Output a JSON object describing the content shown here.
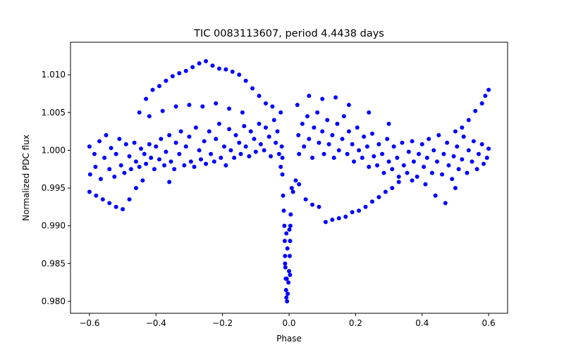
{
  "chart_data": {
    "type": "scatter",
    "title": "TIC 0083113607, period 4.4438 days",
    "xlabel": "Phase",
    "ylabel": "Normalized PDC flux",
    "xlim": [
      -0.657,
      0.657
    ],
    "ylim": [
      0.97842,
      1.0143
    ],
    "x_ticks": [
      -0.6,
      -0.4,
      -0.2,
      0.0,
      0.2,
      0.4,
      0.6
    ],
    "x_tick_labels": [
      "−0.6",
      "−0.4",
      "−0.2",
      "0.0",
      "0.2",
      "0.4",
      "0.6"
    ],
    "y_ticks": [
      0.98,
      0.985,
      0.99,
      0.995,
      1.0,
      1.005,
      1.01
    ],
    "y_tick_labels": [
      "0.980",
      "0.985",
      "0.990",
      "0.995",
      "1.000",
      "1.005",
      "1.010"
    ],
    "grid": false,
    "series": [
      {
        "name": "flux",
        "color": "#0000ff",
        "points": [
          [
            -0.6,
            1.0005
          ],
          [
            -0.598,
            0.9968
          ],
          [
            -0.585,
            0.9995
          ],
          [
            -0.582,
            0.9978
          ],
          [
            -0.57,
            1.0012
          ],
          [
            -0.566,
            0.9962
          ],
          [
            -0.555,
            0.999
          ],
          [
            -0.55,
            1.002
          ],
          [
            -0.54,
            0.9975
          ],
          [
            -0.535,
            1.0003
          ],
          [
            -0.525,
            0.9965
          ],
          [
            -0.52,
            0.9995
          ],
          [
            -0.51,
            1.0015
          ],
          [
            -0.505,
            0.998
          ],
          [
            -0.495,
            0.997
          ],
          [
            -0.49,
            1.0008
          ],
          [
            -0.48,
            0.9992
          ],
          [
            -0.475,
            0.9975
          ],
          [
            -0.465,
            1.001
          ],
          [
            -0.46,
            0.9985
          ],
          [
            -0.45,
            0.9978
          ],
          [
            -0.445,
            1.0002
          ],
          [
            -0.435,
            0.9995
          ],
          [
            -0.43,
            0.9982
          ],
          [
            -0.42,
            1.0008
          ],
          [
            -0.415,
            0.999
          ],
          [
            -0.405,
            0.9975
          ],
          [
            -0.4,
            1.0005
          ],
          [
            -0.39,
            0.9988
          ],
          [
            -0.385,
            1.0015
          ],
          [
            -0.375,
            0.998
          ],
          [
            -0.37,
            0.9998
          ],
          [
            -0.36,
            1.002
          ],
          [
            -0.355,
            0.9985
          ],
          [
            -0.345,
            0.9975
          ],
          [
            -0.34,
            1.001
          ],
          [
            -0.33,
            0.9995
          ],
          [
            -0.325,
            1.0025
          ],
          [
            -0.315,
            0.998
          ],
          [
            -0.31,
            1.0005
          ],
          [
            -0.3,
            1.0018
          ],
          [
            -0.295,
            0.9985
          ],
          [
            -0.285,
            0.9978
          ],
          [
            -0.28,
            1.003
          ],
          [
            -0.27,
            1.0
          ],
          [
            -0.265,
            0.9988
          ],
          [
            -0.255,
            1.0012
          ],
          [
            -0.25,
            0.9982
          ],
          [
            -0.24,
            1.0025
          ],
          [
            -0.235,
            0.9995
          ],
          [
            -0.225,
            0.9985
          ],
          [
            -0.22,
            1.0015
          ],
          [
            -0.21,
            1.0035
          ],
          [
            -0.205,
            0.999
          ],
          [
            -0.195,
            1.0005
          ],
          [
            -0.19,
            0.998
          ],
          [
            -0.18,
            1.0028
          ],
          [
            -0.175,
            1.0
          ],
          [
            -0.165,
            0.999
          ],
          [
            -0.16,
            1.002
          ],
          [
            -0.15,
            1.001
          ],
          [
            -0.145,
            0.9995
          ],
          [
            -0.135,
            1.0032
          ],
          [
            -0.13,
            1.0005
          ],
          [
            -0.12,
            0.9992
          ],
          [
            -0.115,
            1.0025
          ],
          [
            -0.105,
            1.0015
          ],
          [
            -0.1,
            0.9998
          ],
          [
            -0.09,
            1.0035
          ],
          [
            -0.085,
            1.0008
          ],
          [
            -0.075,
            1.0
          ],
          [
            -0.07,
            1.003
          ],
          [
            -0.06,
            1.0018
          ],
          [
            -0.055,
            0.9992
          ],
          [
            -0.045,
            1.004
          ],
          [
            -0.04,
            1.001
          ],
          [
            -0.035,
            1.0025
          ],
          [
            -0.03,
            0.9995
          ],
          [
            -0.025,
            1.005
          ],
          [
            -0.022,
            1.0005
          ],
          [
            -0.02,
            0.999
          ],
          [
            -0.025,
            0.9978
          ],
          [
            -0.02,
            0.9968
          ],
          [
            0.025,
            1.006
          ],
          [
            0.028,
            1.002
          ],
          [
            0.03,
            0.9995
          ],
          [
            0.04,
            1.0035
          ],
          [
            0.045,
            1.0005
          ],
          [
            0.055,
            1.0045
          ],
          [
            0.06,
            1.0015
          ],
          [
            0.07,
            0.999
          ],
          [
            0.075,
            1.003
          ],
          [
            0.085,
            1.005
          ],
          [
            0.09,
            1.001
          ],
          [
            0.1,
            1.0025
          ],
          [
            0.105,
            0.9995
          ],
          [
            0.115,
            1.004
          ],
          [
            0.12,
            1.0008
          ],
          [
            0.13,
            1.002
          ],
          [
            0.135,
            0.999
          ],
          [
            0.145,
            1.0035
          ],
          [
            0.15,
            1.0
          ],
          [
            0.16,
            1.0015
          ],
          [
            0.165,
            1.0045
          ],
          [
            0.175,
            0.9995
          ],
          [
            0.18,
            1.0025
          ],
          [
            0.19,
            1.0008
          ],
          [
            0.195,
            0.9985
          ],
          [
            0.205,
            1.003
          ],
          [
            0.21,
            1.0
          ],
          [
            0.22,
            0.999
          ],
          [
            0.225,
            1.0018
          ],
          [
            0.235,
            1.0005
          ],
          [
            0.24,
            0.9978
          ],
          [
            0.25,
            1.0022
          ],
          [
            0.255,
            0.9992
          ],
          [
            0.265,
            0.998
          ],
          [
            0.27,
            1.0008
          ],
          [
            0.28,
            0.9995
          ],
          [
            0.285,
            0.997
          ],
          [
            0.295,
            1.0015
          ],
          [
            0.3,
            0.9985
          ],
          [
            0.31,
            0.9975
          ],
          [
            0.315,
            1.0005
          ],
          [
            0.325,
            0.999
          ],
          [
            0.33,
            0.9965
          ],
          [
            0.34,
            1.001
          ],
          [
            0.345,
            0.998
          ],
          [
            0.355,
            0.997
          ],
          [
            0.36,
            0.9998
          ],
          [
            0.37,
            1.0012
          ],
          [
            0.375,
            0.9985
          ],
          [
            0.385,
            0.9965
          ],
          [
            0.39,
            0.9995
          ],
          [
            0.4,
            1.0008
          ],
          [
            0.405,
            0.9978
          ],
          [
            0.415,
            0.999
          ],
          [
            0.42,
            1.0015
          ],
          [
            0.43,
            0.997
          ],
          [
            0.435,
            1.0
          ],
          [
            0.445,
            0.9985
          ],
          [
            0.45,
            1.002
          ],
          [
            0.46,
            0.9968
          ],
          [
            0.465,
            0.9995
          ],
          [
            0.475,
            1.001
          ],
          [
            0.48,
            0.998
          ],
          [
            0.49,
            0.9962
          ],
          [
            0.495,
            0.9992
          ],
          [
            0.505,
            1.0005
          ],
          [
            0.51,
            0.9975
          ],
          [
            0.52,
            0.9988
          ],
          [
            0.525,
            1.0018
          ],
          [
            0.535,
            0.997
          ],
          [
            0.54,
            1.0
          ],
          [
            0.55,
            0.9985
          ],
          [
            0.555,
            1.0012
          ],
          [
            0.565,
            0.9975
          ],
          [
            0.57,
            0.9995
          ],
          [
            0.58,
            1.0008
          ],
          [
            0.585,
            0.9982
          ],
          [
            0.595,
            0.999
          ],
          [
            0.6,
            1.0002
          ],
          [
            -0.45,
            1.005
          ],
          [
            -0.43,
            1.0068
          ],
          [
            -0.41,
            1.008
          ],
          [
            -0.39,
            1.0085
          ],
          [
            -0.37,
            1.0092
          ],
          [
            -0.35,
            1.0098
          ],
          [
            -0.33,
            1.0102
          ],
          [
            -0.31,
            1.0105
          ],
          [
            -0.29,
            1.011
          ],
          [
            -0.27,
            1.0115
          ],
          [
            -0.25,
            1.0118
          ],
          [
            -0.23,
            1.0112
          ],
          [
            -0.21,
            1.0108
          ],
          [
            -0.19,
            1.0107
          ],
          [
            -0.17,
            1.0104
          ],
          [
            -0.15,
            1.01
          ],
          [
            -0.13,
            1.0092
          ],
          [
            -0.11,
            1.0082
          ],
          [
            -0.09,
            1.0072
          ],
          [
            -0.07,
            1.0062
          ],
          [
            -0.05,
            1.0058
          ],
          [
            -0.42,
            1.0045
          ],
          [
            -0.38,
            1.0052
          ],
          [
            -0.34,
            1.0058
          ],
          [
            -0.3,
            1.006
          ],
          [
            -0.26,
            1.0058
          ],
          [
            -0.22,
            1.0062
          ],
          [
            -0.18,
            1.0055
          ],
          [
            -0.14,
            1.005
          ],
          [
            -0.6,
            0.9945
          ],
          [
            -0.58,
            0.994
          ],
          [
            -0.56,
            0.9935
          ],
          [
            -0.54,
            0.993
          ],
          [
            -0.52,
            0.9925
          ],
          [
            -0.5,
            0.9922
          ],
          [
            -0.48,
            0.9935
          ],
          [
            -0.46,
            0.995
          ],
          [
            -0.44,
            0.996
          ],
          [
            -0.36,
            0.9958
          ],
          [
            0.06,
            1.0072
          ],
          [
            0.1,
            1.0068
          ],
          [
            0.14,
            1.007
          ],
          [
            0.18,
            1.006
          ],
          [
            0.24,
            1.005
          ],
          [
            0.3,
            1.0035
          ],
          [
            0.5,
            1.0025
          ],
          [
            0.52,
            1.003
          ],
          [
            0.54,
            1.004
          ],
          [
            0.56,
            1.0052
          ],
          [
            0.58,
            1.0062
          ],
          [
            0.59,
            1.0072
          ],
          [
            0.6,
            1.008
          ],
          [
            0.03,
            0.9955
          ],
          [
            0.05,
            0.9935
          ],
          [
            0.07,
            0.9928
          ],
          [
            0.09,
            0.9925
          ],
          [
            0.11,
            0.9905
          ],
          [
            0.13,
            0.9908
          ],
          [
            0.15,
            0.991
          ],
          [
            0.17,
            0.9912
          ],
          [
            0.19,
            0.9918
          ],
          [
            0.21,
            0.992
          ],
          [
            0.23,
            0.9925
          ],
          [
            0.25,
            0.9932
          ],
          [
            0.27,
            0.9938
          ],
          [
            0.29,
            0.9945
          ],
          [
            0.31,
            0.995
          ],
          [
            0.33,
            0.9958
          ],
          [
            0.37,
            0.996
          ],
          [
            0.41,
            0.9955
          ],
          [
            0.44,
            0.994
          ],
          [
            0.47,
            0.993
          ],
          [
            0.5,
            0.995
          ],
          [
            -0.018,
            0.994
          ],
          [
            -0.016,
            0.992
          ],
          [
            -0.014,
            0.99
          ],
          [
            -0.013,
            0.988
          ],
          [
            -0.012,
            0.986
          ],
          [
            -0.011,
            0.9845
          ],
          [
            -0.01,
            0.983
          ],
          [
            -0.009,
            0.9815
          ],
          [
            -0.008,
            0.9805
          ],
          [
            -0.006,
            0.98
          ],
          [
            -0.004,
            0.981
          ],
          [
            -0.002,
            0.9825
          ],
          [
            0.0,
            0.984
          ],
          [
            0.002,
            0.986
          ],
          [
            0.003,
            0.988
          ],
          [
            0.004,
            0.99
          ],
          [
            0.005,
            0.9915
          ],
          [
            -0.005,
            0.987
          ],
          [
            -0.008,
            0.989
          ],
          [
            0.001,
            0.9895
          ],
          [
            -0.012,
            0.985
          ],
          [
            0.003,
            0.9835
          ],
          [
            -0.007,
            0.983
          ],
          [
            0.008,
            0.995
          ],
          [
            0.012,
            0.9945
          ],
          [
            0.02,
            0.996
          ]
        ]
      }
    ]
  }
}
